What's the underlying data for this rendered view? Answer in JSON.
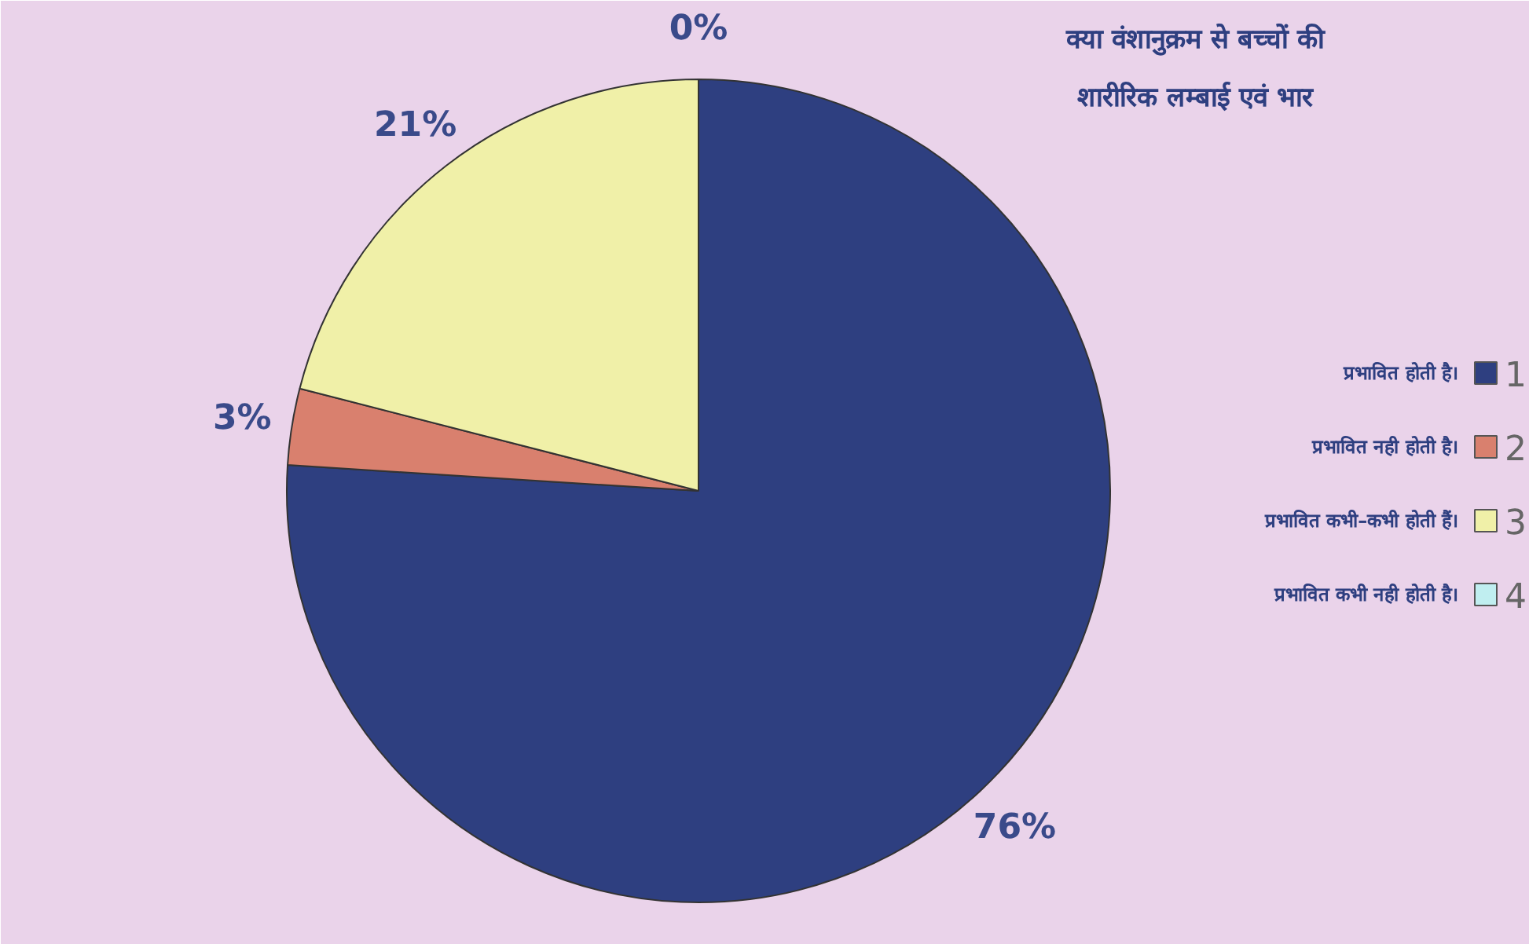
{
  "chart_data": {
    "type": "pie",
    "title": "क्या वंशानुक्रम से बच्चों की शारीरिक लम्बाई एवं भार",
    "categories": [
      "1",
      "2",
      "3",
      "4"
    ],
    "values": [
      76,
      3,
      21,
      0
    ],
    "value_labels": [
      "76%",
      "3%",
      "21%",
      "0%"
    ],
    "colors": [
      "#2e3f80",
      "#d9806e",
      "#f0f0a8",
      "#c0eef0"
    ],
    "legend": "right",
    "annotations": [
      "प्रभावित होती है।",
      "प्रभावित नही होती है।",
      "प्रभावित कभी–कभी होती हैं।",
      "प्रभावित कभी नही होती है।"
    ]
  }
}
